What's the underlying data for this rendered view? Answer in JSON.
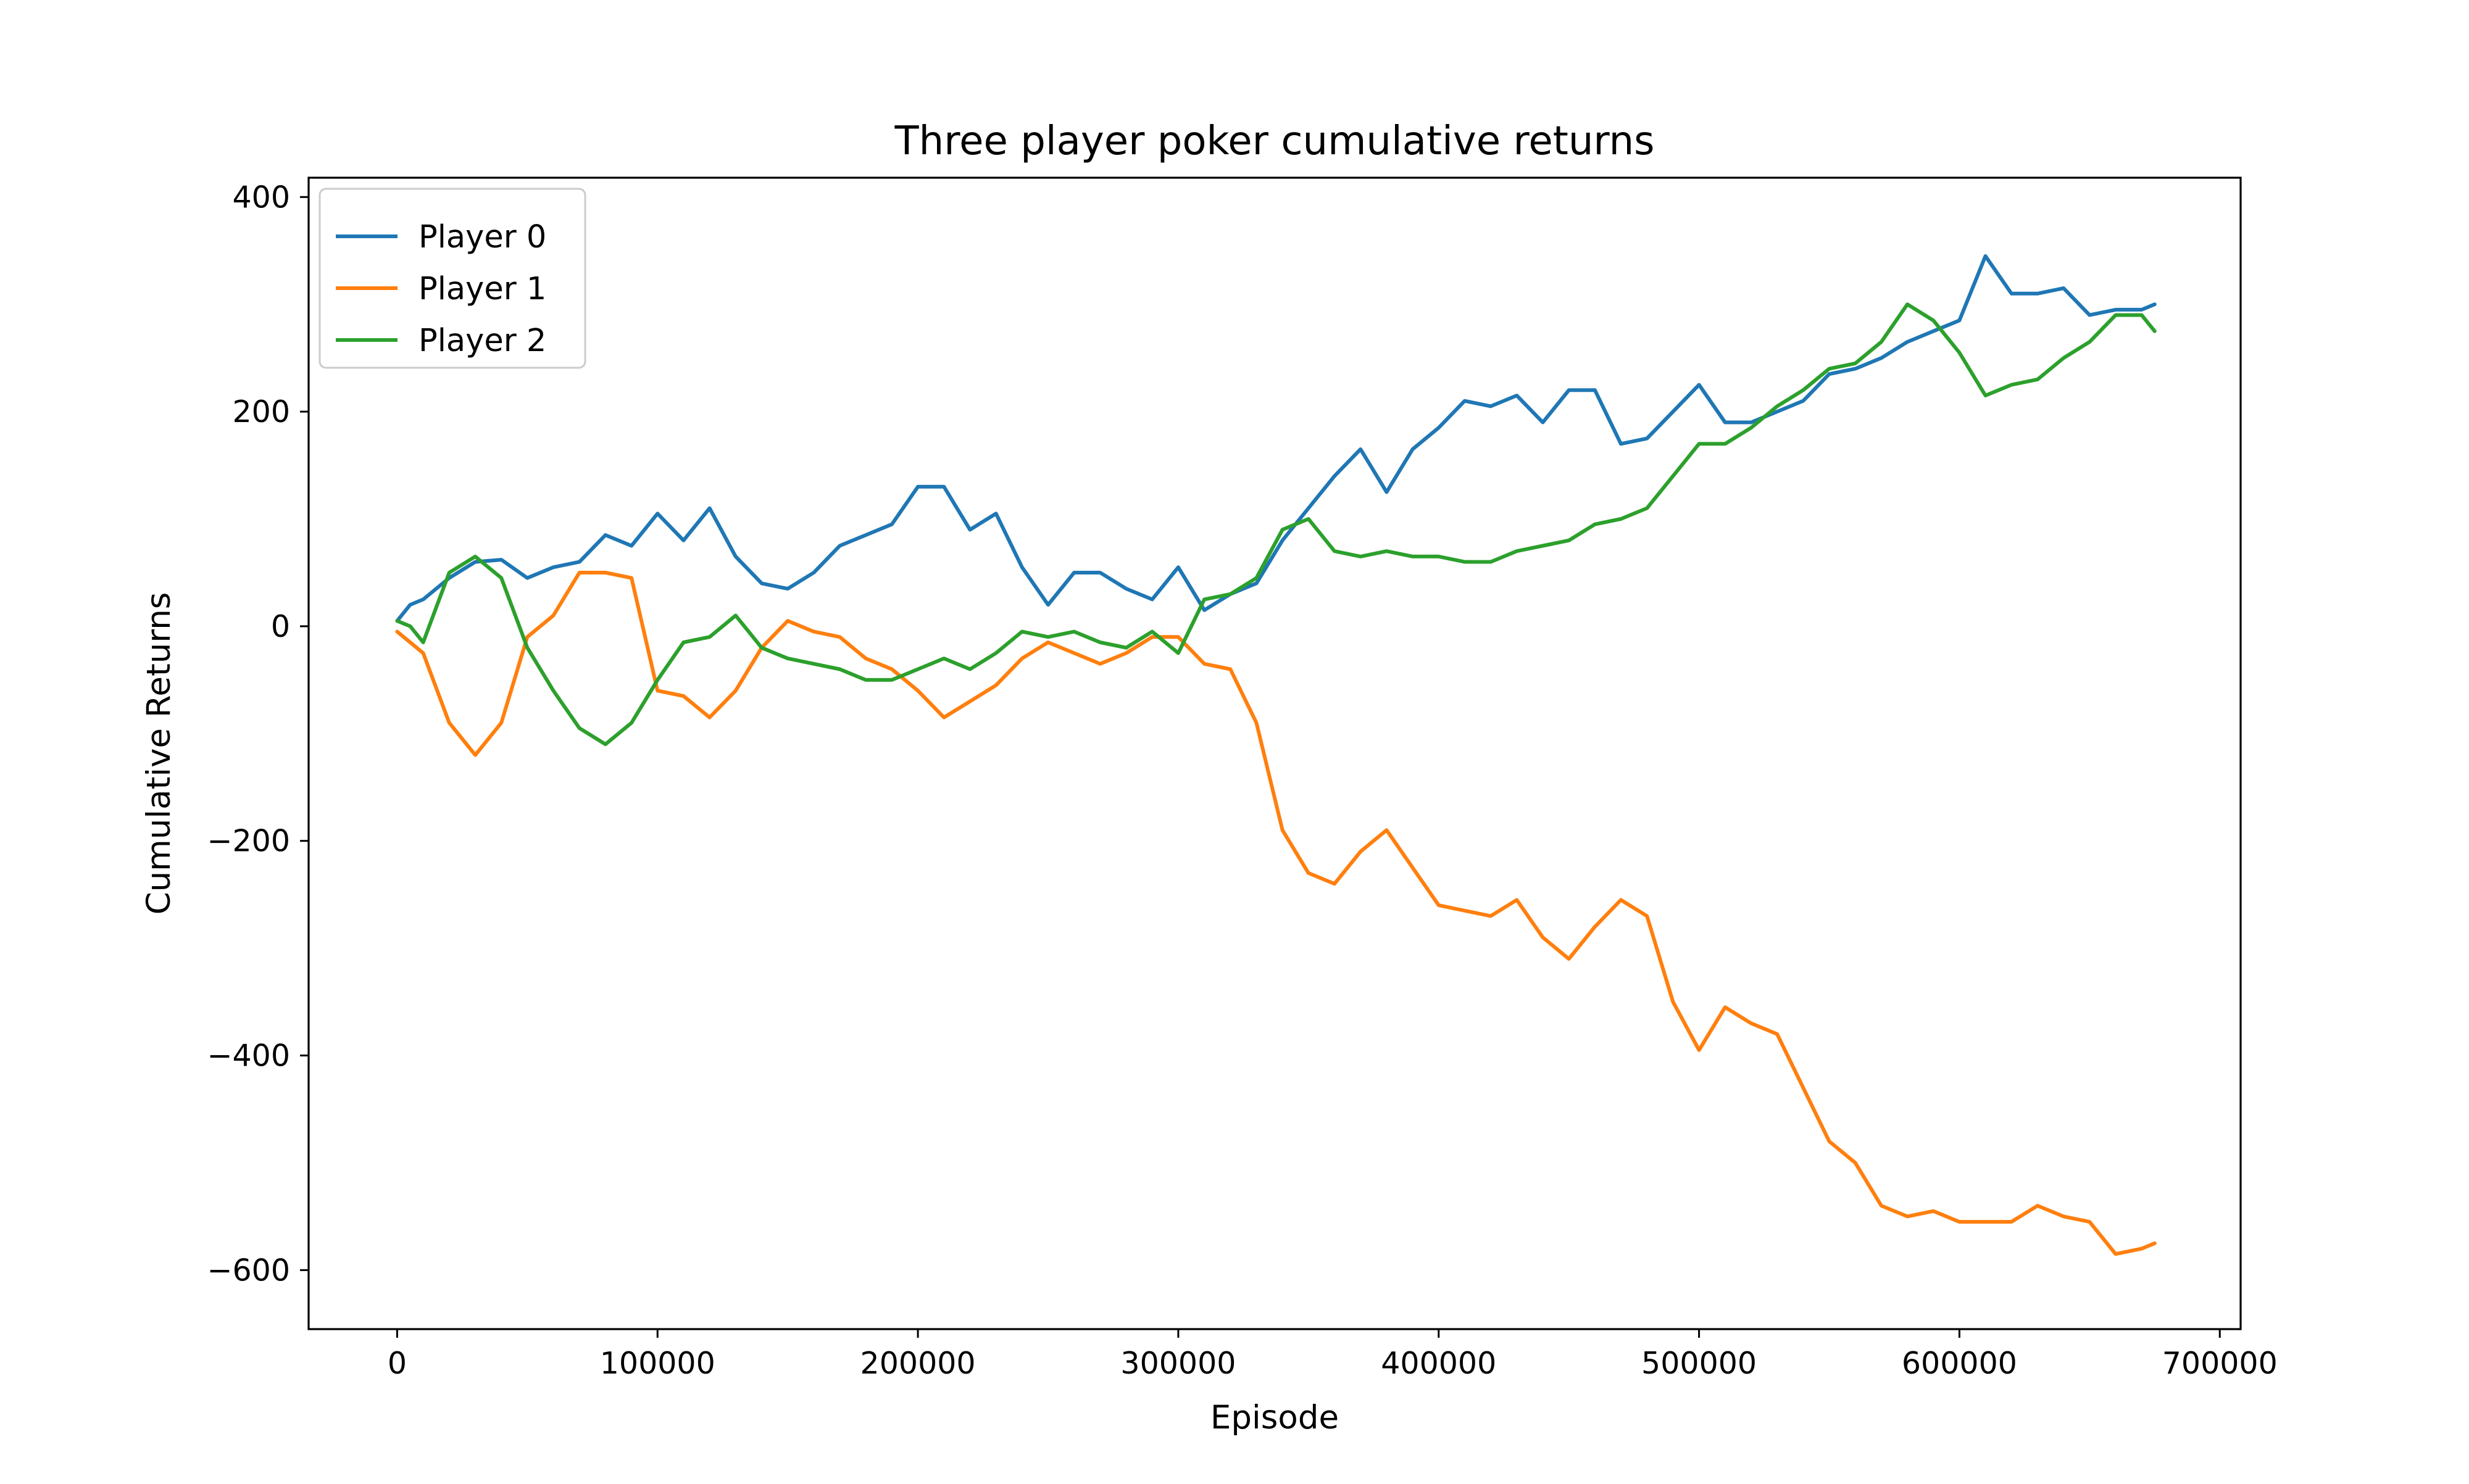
{
  "chart_data": {
    "type": "line",
    "title": "Three player poker cumulative returns",
    "xlabel": "Episode",
    "ylabel": "Cumulative Returns",
    "xlim": [
      -34000,
      708000
    ],
    "ylim": [
      -655,
      418
    ],
    "xticks": [
      0,
      100000,
      200000,
      300000,
      400000,
      500000,
      600000,
      700000
    ],
    "xtick_labels": [
      "0",
      "100000",
      "200000",
      "300000",
      "400000",
      "500000",
      "600000",
      "700000"
    ],
    "yticks": [
      -600,
      -400,
      -200,
      0,
      200,
      400
    ],
    "ytick_labels": [
      "−600",
      "−400",
      "−200",
      "0",
      "200",
      "400"
    ],
    "grid": false,
    "legend_position": "top-left",
    "series": [
      {
        "name": "Player 0",
        "color": "#1f77b4",
        "x": [
          0,
          5000,
          10000,
          20000,
          30000,
          40000,
          50000,
          60000,
          70000,
          80000,
          90000,
          100000,
          110000,
          120000,
          130000,
          140000,
          150000,
          160000,
          170000,
          180000,
          190000,
          200000,
          210000,
          220000,
          230000,
          240000,
          250000,
          260000,
          270000,
          280000,
          290000,
          300000,
          310000,
          320000,
          330000,
          340000,
          350000,
          360000,
          370000,
          380000,
          390000,
          400000,
          410000,
          420000,
          430000,
          440000,
          450000,
          460000,
          470000,
          480000,
          490000,
          500000,
          510000,
          520000,
          530000,
          540000,
          550000,
          560000,
          570000,
          580000,
          590000,
          600000,
          610000,
          620000,
          630000,
          640000,
          650000,
          660000,
          670000,
          675000
        ],
        "y": [
          5,
          20,
          25,
          45,
          60,
          62,
          45,
          55,
          60,
          85,
          75,
          105,
          80,
          110,
          65,
          40,
          35,
          50,
          75,
          85,
          95,
          130,
          130,
          90,
          105,
          55,
          20,
          50,
          50,
          35,
          25,
          55,
          15,
          30,
          40,
          80,
          110,
          140,
          165,
          125,
          165,
          185,
          210,
          205,
          215,
          190,
          220,
          220,
          170,
          175,
          200,
          225,
          190,
          190,
          200,
          210,
          235,
          240,
          250,
          265,
          275,
          285,
          345,
          310,
          310,
          315,
          290,
          295,
          295,
          300
        ]
      },
      {
        "name": "Player 1",
        "color": "#ff7f0e",
        "x": [
          0,
          5000,
          10000,
          20000,
          30000,
          40000,
          50000,
          60000,
          70000,
          80000,
          90000,
          100000,
          110000,
          120000,
          130000,
          140000,
          150000,
          160000,
          170000,
          180000,
          190000,
          200000,
          210000,
          220000,
          230000,
          240000,
          250000,
          260000,
          270000,
          280000,
          290000,
          300000,
          310000,
          320000,
          330000,
          340000,
          350000,
          360000,
          370000,
          380000,
          390000,
          400000,
          410000,
          420000,
          430000,
          440000,
          450000,
          460000,
          470000,
          480000,
          490000,
          500000,
          510000,
          520000,
          530000,
          540000,
          550000,
          560000,
          570000,
          580000,
          590000,
          600000,
          610000,
          620000,
          630000,
          640000,
          650000,
          660000,
          670000,
          675000
        ],
        "y": [
          -5,
          -15,
          -25,
          -90,
          -120,
          -90,
          -10,
          10,
          50,
          50,
          45,
          -60,
          -65,
          -85,
          -60,
          -20,
          5,
          -5,
          -10,
          -30,
          -40,
          -60,
          -85,
          -70,
          -55,
          -30,
          -15,
          -25,
          -35,
          -25,
          -10,
          -10,
          -35,
          -40,
          -90,
          -190,
          -230,
          -240,
          -210,
          -190,
          -225,
          -260,
          -265,
          -270,
          -255,
          -290,
          -310,
          -280,
          -255,
          -270,
          -350,
          -395,
          -355,
          -370,
          -380,
          -430,
          -480,
          -500,
          -540,
          -550,
          -545,
          -555,
          -555,
          -555,
          -540,
          -550,
          -555,
          -585,
          -580,
          -575
        ]
      },
      {
        "name": "Player 2",
        "color": "#2ca02c",
        "x": [
          0,
          5000,
          10000,
          20000,
          30000,
          40000,
          50000,
          60000,
          70000,
          80000,
          90000,
          100000,
          110000,
          120000,
          130000,
          140000,
          150000,
          160000,
          170000,
          180000,
          190000,
          200000,
          210000,
          220000,
          230000,
          240000,
          250000,
          260000,
          270000,
          280000,
          290000,
          300000,
          310000,
          320000,
          330000,
          340000,
          350000,
          360000,
          370000,
          380000,
          390000,
          400000,
          410000,
          420000,
          430000,
          440000,
          450000,
          460000,
          470000,
          480000,
          490000,
          500000,
          510000,
          520000,
          530000,
          540000,
          550000,
          560000,
          570000,
          580000,
          590000,
          600000,
          610000,
          620000,
          630000,
          640000,
          650000,
          660000,
          670000,
          675000
        ],
        "y": [
          5,
          0,
          -15,
          50,
          65,
          45,
          -20,
          -60,
          -95,
          -110,
          -90,
          -50,
          -15,
          -10,
          10,
          -20,
          -30,
          -35,
          -40,
          -50,
          -50,
          -40,
          -30,
          -40,
          -25,
          -5,
          -10,
          -5,
          -15,
          -20,
          -5,
          -25,
          25,
          30,
          45,
          90,
          100,
          70,
          65,
          70,
          65,
          65,
          60,
          60,
          70,
          75,
          80,
          95,
          100,
          110,
          140,
          170,
          170,
          185,
          205,
          220,
          240,
          245,
          265,
          300,
          285,
          255,
          215,
          225,
          230,
          250,
          265,
          290,
          290,
          275
        ]
      }
    ]
  }
}
